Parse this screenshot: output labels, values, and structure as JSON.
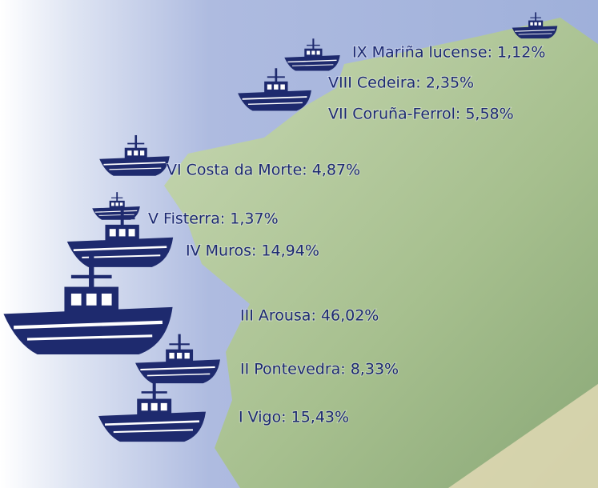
{
  "regions": [
    {
      "label": "IX Mariña lucense: 1,12%",
      "value": 1.12
    },
    {
      "label": "VIII Cedeira: 2,35%",
      "value": 2.35
    },
    {
      "label": "VII Coruña-Ferrol: 5,58%",
      "value": 5.58
    },
    {
      "label": "VI Costa da Morte: 4,87%",
      "value": 4.87
    },
    {
      "label": "V Fisterra: 1,37%",
      "value": 1.37
    },
    {
      "label": "IV Muros: 14,94%",
      "value": 14.94
    },
    {
      "label": "III Arousa: 46,02%",
      "value": 46.02
    },
    {
      "label": "II Pontevedra: 8,33%",
      "value": 8.33
    },
    {
      "label": "I Vigo: 15,43%",
      "value": 15.43
    }
  ]
}
